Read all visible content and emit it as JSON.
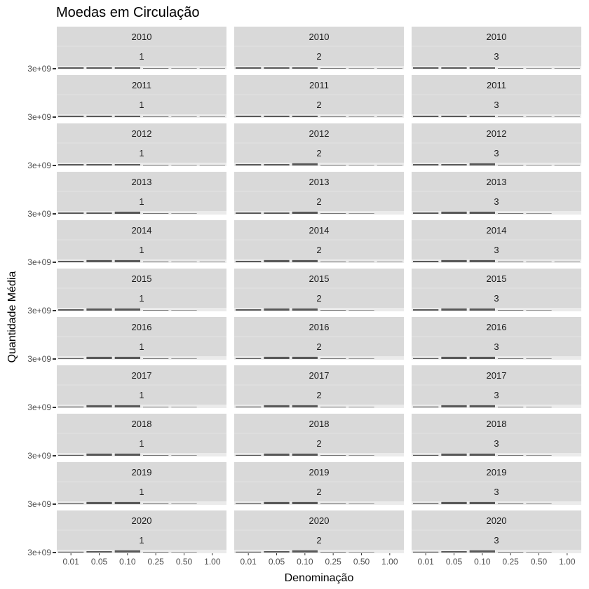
{
  "chart_data": {
    "type": "bar",
    "title": "Moedas em Circulação",
    "xlabel": "Denominação",
    "ylabel": "Quantidade Média",
    "categories": [
      "0.01",
      "0.05",
      "0.10",
      "0.25",
      "0.50",
      "1.00"
    ],
    "y_tick_label": "3e+09",
    "facet_rows": [
      "2010",
      "2011",
      "2012",
      "2013",
      "2014",
      "2015",
      "2016",
      "2017",
      "2018",
      "2019",
      "2020"
    ],
    "facet_cols": [
      "1",
      "2",
      "3"
    ],
    "grid": true,
    "background": "#ebebeb",
    "strip_color": "#d9d9d9",
    "bar_color": "#595959",
    "panels": [
      {
        "year": "2010",
        "group": "1",
        "values": [
          1.0,
          1.0,
          1.0,
          0.4,
          0.3,
          0.3
        ]
      },
      {
        "year": "2010",
        "group": "2",
        "values": [
          1.0,
          1.0,
          1.0,
          0.4,
          0.3,
          0.3
        ]
      },
      {
        "year": "2010",
        "group": "3",
        "values": [
          1.0,
          1.0,
          1.0,
          0.4,
          0.3,
          0.3
        ]
      },
      {
        "year": "2011",
        "group": "1",
        "values": [
          1.0,
          1.0,
          1.0,
          0.4,
          0.3,
          0.3
        ]
      },
      {
        "year": "2011",
        "group": "2",
        "values": [
          1.0,
          1.0,
          1.0,
          0.4,
          0.3,
          0.3
        ]
      },
      {
        "year": "2011",
        "group": "3",
        "values": [
          1.0,
          1.0,
          1.0,
          0.4,
          0.3,
          0.3
        ]
      },
      {
        "year": "2012",
        "group": "1",
        "values": [
          1.0,
          1.0,
          1.0,
          0.4,
          0.3,
          0.3
        ]
      },
      {
        "year": "2012",
        "group": "2",
        "values": [
          1.0,
          1.0,
          1.6,
          0.4,
          0.3,
          0.3
        ]
      },
      {
        "year": "2012",
        "group": "3",
        "values": [
          1.0,
          1.0,
          1.6,
          0.4,
          0.3,
          0.3
        ]
      },
      {
        "year": "2013",
        "group": "1",
        "values": [
          1.0,
          1.0,
          1.6,
          0.4,
          0.3,
          null
        ]
      },
      {
        "year": "2013",
        "group": "2",
        "values": [
          1.0,
          1.0,
          1.6,
          0.4,
          0.3,
          null
        ]
      },
      {
        "year": "2013",
        "group": "3",
        "values": [
          1.0,
          1.6,
          1.6,
          0.4,
          0.3,
          null
        ]
      },
      {
        "year": "2014",
        "group": "1",
        "values": [
          1.0,
          1.6,
          1.6,
          0.4,
          0.3,
          0.3
        ]
      },
      {
        "year": "2014",
        "group": "2",
        "values": [
          1.0,
          1.6,
          1.6,
          0.4,
          0.3,
          0.3
        ]
      },
      {
        "year": "2014",
        "group": "3",
        "values": [
          1.0,
          1.6,
          1.6,
          0.4,
          0.3,
          0.3
        ]
      },
      {
        "year": "2015",
        "group": "1",
        "values": [
          1.0,
          1.6,
          1.6,
          0.4,
          0.3,
          null
        ]
      },
      {
        "year": "2015",
        "group": "2",
        "values": [
          1.0,
          1.6,
          1.6,
          0.4,
          0.3,
          null
        ]
      },
      {
        "year": "2015",
        "group": "3",
        "values": [
          1.0,
          1.6,
          1.6,
          0.4,
          0.3,
          null
        ]
      },
      {
        "year": "2016",
        "group": "1",
        "values": [
          0.6,
          1.6,
          1.6,
          0.4,
          0.3,
          null
        ]
      },
      {
        "year": "2016",
        "group": "2",
        "values": [
          0.6,
          1.6,
          1.6,
          0.4,
          0.3,
          null
        ]
      },
      {
        "year": "2016",
        "group": "3",
        "values": [
          0.6,
          1.6,
          1.6,
          0.4,
          0.3,
          null
        ]
      },
      {
        "year": "2017",
        "group": "1",
        "values": [
          0.6,
          1.6,
          1.6,
          0.4,
          0.3,
          null
        ]
      },
      {
        "year": "2017",
        "group": "2",
        "values": [
          0.6,
          1.6,
          1.6,
          0.4,
          0.3,
          null
        ]
      },
      {
        "year": "2017",
        "group": "3",
        "values": [
          0.6,
          1.6,
          1.6,
          0.4,
          0.3,
          null
        ]
      },
      {
        "year": "2018",
        "group": "1",
        "values": [
          0.6,
          1.6,
          1.6,
          0.4,
          0.3,
          null
        ]
      },
      {
        "year": "2018",
        "group": "2",
        "values": [
          0.6,
          1.6,
          1.6,
          0.4,
          0.3,
          null
        ]
      },
      {
        "year": "2018",
        "group": "3",
        "values": [
          0.6,
          1.6,
          1.6,
          0.4,
          0.3,
          null
        ]
      },
      {
        "year": "2019",
        "group": "1",
        "values": [
          0.6,
          1.6,
          1.6,
          0.4,
          0.3,
          null
        ]
      },
      {
        "year": "2019",
        "group": "2",
        "values": [
          0.6,
          1.6,
          1.6,
          0.4,
          0.3,
          null
        ]
      },
      {
        "year": "2019",
        "group": "3",
        "values": [
          0.6,
          1.6,
          1.6,
          0.4,
          0.3,
          null
        ]
      },
      {
        "year": "2020",
        "group": "1",
        "values": [
          0.6,
          1.0,
          1.6,
          0.4,
          0.3,
          null
        ]
      },
      {
        "year": "2020",
        "group": "2",
        "values": [
          0.6,
          1.0,
          1.6,
          0.4,
          0.3,
          null
        ]
      },
      {
        "year": "2020",
        "group": "3",
        "values": [
          0.6,
          1.0,
          1.6,
          0.4,
          0.3,
          null
        ]
      }
    ]
  }
}
